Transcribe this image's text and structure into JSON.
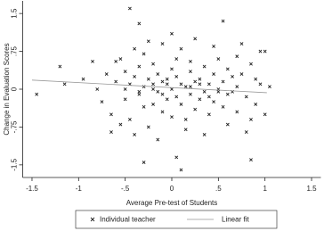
{
  "chart_data": {
    "type": "scatter",
    "xlabel": "Average Pre-test of Students",
    "ylabel": "Change in Evaluation Scores",
    "xlim": [
      -1.6,
      1.6
    ],
    "ylim": [
      -1.75,
      1.75
    ],
    "xticks": [
      -1.5,
      -1,
      {
        "value": -0.5,
        "label": "-.5"
      },
      0,
      {
        "value": 0.5,
        "label": ".5"
      },
      1,
      1.5
    ],
    "yticks": [
      {
        "value": -1.5,
        "label": "-1.5"
      },
      {
        "value": -0.75,
        "label": "-.75"
      },
      0,
      {
        "value": 0.75,
        "label": ".75"
      },
      1.5
    ],
    "series": [
      {
        "name": "Individual teacher",
        "color": "#222222",
        "x": [
          -1.45,
          -1.2,
          -1.15,
          -0.85,
          -0.95,
          -0.75,
          -0.8,
          -0.7,
          -0.65,
          -0.6,
          -0.55,
          -0.5,
          -0.5,
          -0.45,
          -0.45,
          -0.4,
          -0.4,
          -0.35,
          -0.35,
          -0.3,
          -0.3,
          -0.3,
          -0.25,
          -0.25,
          -0.2,
          -0.2,
          -0.2,
          -0.15,
          -0.15,
          -0.1,
          -0.1,
          -0.1,
          -0.05,
          -0.05,
          0,
          0,
          0,
          0.05,
          0.05,
          0.05,
          0.1,
          0.1,
          0.1,
          0.15,
          0.15,
          0.2,
          0.2,
          0.2,
          0.25,
          0.25,
          0.3,
          0.3,
          0.35,
          0.35,
          0.4,
          0.4,
          0.45,
          0.45,
          0.5,
          0.5,
          0.55,
          0.55,
          0.6,
          0.6,
          0.65,
          0.7,
          0.7,
          0.75,
          0.8,
          0.85,
          0.85,
          0.9,
          0.95,
          1.0,
          1.05,
          -0.45,
          -0.35,
          0.1,
          0.05,
          0.85,
          -0.3,
          -0.65,
          0.55,
          0.75,
          1.0,
          0.95,
          -0.6,
          -0.55,
          -0.4,
          -0.25,
          -0.15,
          0.0,
          0.15,
          0.25,
          0.35,
          0.45,
          0.6,
          0.7,
          0.8,
          0.9,
          -0.5,
          -0.2,
          0.3,
          0.65,
          -0.1,
          0.4,
          -0.35,
          0.2,
          0.5,
          -0.05
        ],
        "values": [
          -0.1,
          0.45,
          0.1,
          0.55,
          0.2,
          -0.25,
          0.0,
          0.3,
          -0.5,
          0.15,
          0.6,
          -0.2,
          0.35,
          0.1,
          -0.6,
          0.8,
          0.25,
          -0.1,
          0.45,
          0.05,
          -0.35,
          0.7,
          0.2,
          -0.75,
          0.1,
          0.5,
          -0.3,
          0.3,
          -0.05,
          0.9,
          0.15,
          -0.45,
          0.2,
          -0.2,
          0.4,
          0.0,
          -0.55,
          0.25,
          -0.15,
          0.6,
          0.1,
          -0.3,
          0.8,
          0.05,
          -0.6,
          0.35,
          -0.1,
          0.55,
          0.15,
          -0.4,
          0.2,
          -0.2,
          0.45,
          -0.05,
          0.1,
          -0.5,
          0.3,
          -0.25,
          0.0,
          0.6,
          0.15,
          -0.35,
          0.4,
          -0.1,
          0.25,
          0.05,
          -0.45,
          0.3,
          -0.15,
          0.5,
          -0.6,
          0.2,
          0.1,
          -0.5,
          0.05,
          1.6,
          1.3,
          -1.6,
          -1.35,
          -1.4,
          -1.45,
          -0.85,
          1.35,
          0.9,
          0.75,
          0.75,
          0.55,
          -0.7,
          -0.9,
          0.95,
          -1.0,
          1.1,
          -0.8,
          1.0,
          -0.9,
          0.85,
          -0.7,
          0.65,
          -0.85,
          -0.3,
          0.0,
          0.0,
          0.1,
          -0.05,
          -0.1,
          -0.15,
          -0.05,
          0.05,
          -0.05,
          0.1
        ]
      },
      {
        "name": "Linear fit",
        "color": "#999999",
        "x": [
          -1.5,
          1.02
        ],
        "values": [
          0.18,
          -0.07
        ]
      }
    ]
  }
}
